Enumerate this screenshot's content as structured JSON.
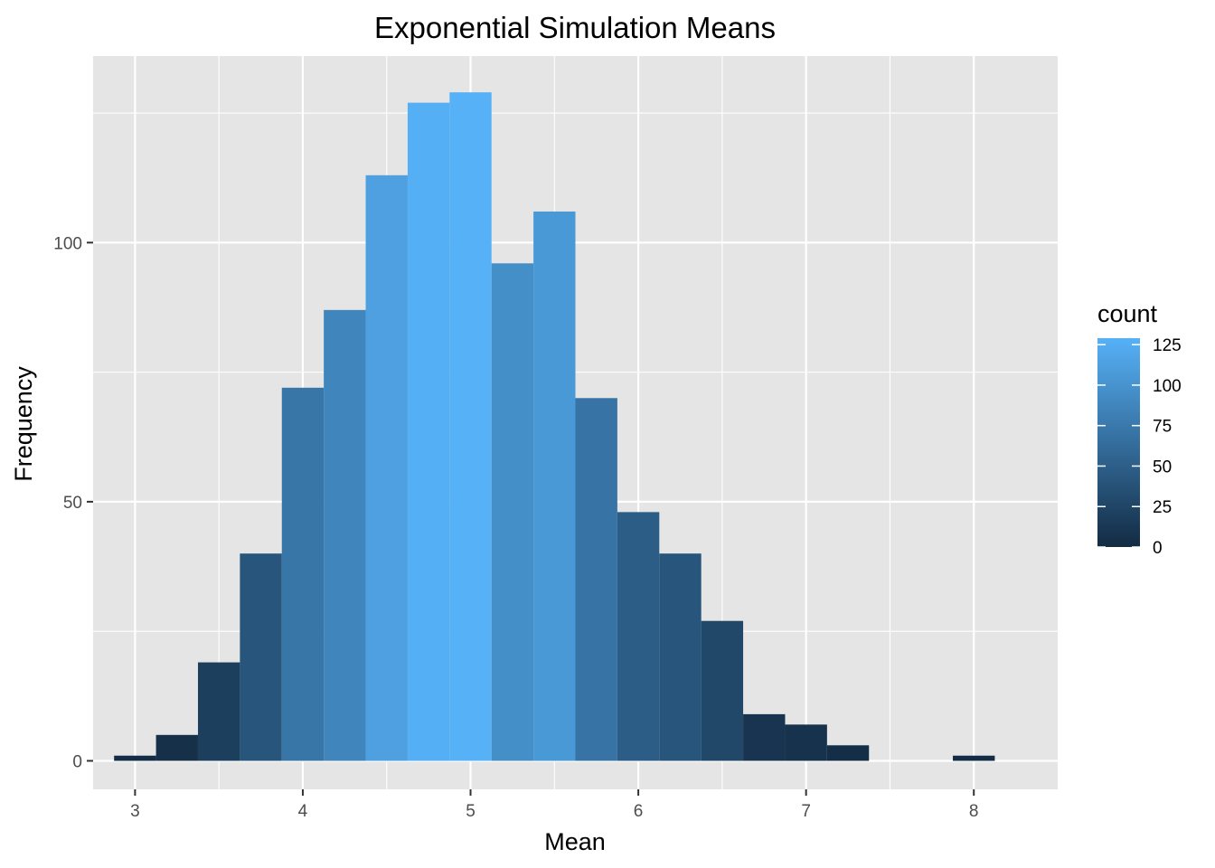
{
  "chart_data": {
    "type": "histogram",
    "title": "Exponential Simulation Means",
    "xlabel": "Mean",
    "ylabel": "Frequency",
    "xlim": [
      2.75,
      8.5
    ],
    "ylim": [
      -5.5,
      136
    ],
    "x_ticks": [
      3,
      4,
      5,
      6,
      7,
      8
    ],
    "y_ticks": [
      0,
      50,
      100
    ],
    "bin_width": 0.25,
    "bin_centers": [
      3.0,
      3.25,
      3.5,
      3.75,
      4.0,
      4.25,
      4.5,
      4.75,
      5.0,
      5.25,
      5.5,
      5.75,
      6.0,
      6.25,
      6.5,
      6.75,
      7.0,
      7.25,
      7.5,
      7.75,
      8.0
    ],
    "counts": [
      1,
      5,
      19,
      40,
      72,
      87,
      113,
      127,
      129,
      96,
      106,
      70,
      48,
      40,
      27,
      9,
      7,
      3,
      0,
      0,
      1
    ],
    "grid": true,
    "legend": {
      "title": "count",
      "position": "right",
      "breaks": [
        0,
        25,
        50,
        75,
        100,
        125
      ],
      "range": [
        0,
        129
      ],
      "low_color": "#132B43",
      "high_color": "#56B1F7"
    },
    "colors": {
      "panel_background": "#e5e5e5",
      "grid_line": "#ffffff",
      "tick_color": "#333333"
    }
  }
}
